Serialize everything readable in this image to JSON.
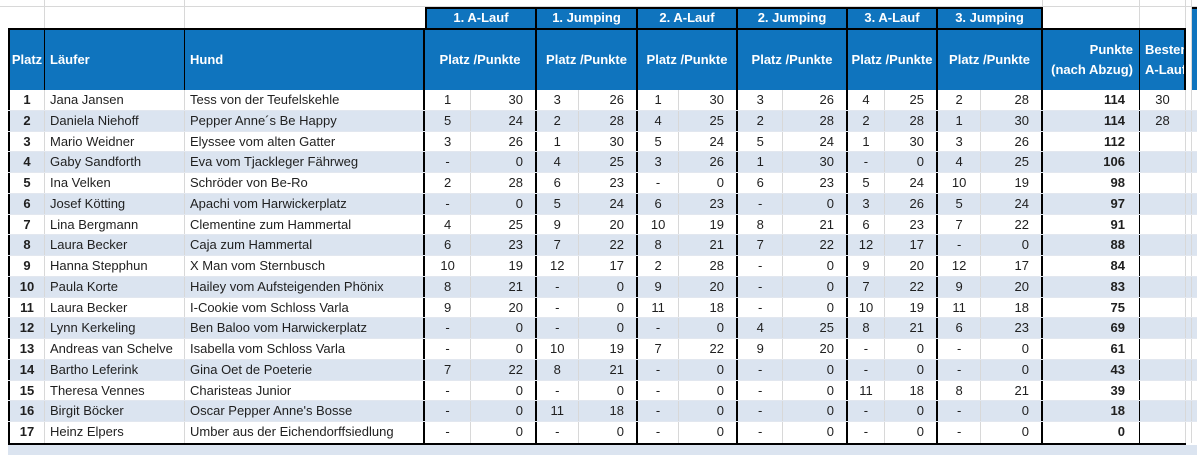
{
  "colors": {
    "header_blue": "#0f74be",
    "band_row": "#dbe4f0",
    "gridline": "#d8d8d8",
    "border_black": "#000000"
  },
  "table": {
    "corner": {
      "platz": "Platz",
      "laeufer": "Läufer",
      "hund": "Hund"
    },
    "run_groups": [
      "1. A-Lauf",
      "1. Jumping",
      "2. A-Lauf",
      "2. Jumping",
      "3. A-Lauf",
      "3. Jumping"
    ],
    "sub_header": "Platz /Punkte",
    "punkte_header": {
      "line1": "Punkte",
      "line2": "(nach Abzug)"
    },
    "bester_header": {
      "line1": "Bester",
      "line2": "A-Lauf"
    },
    "rows": [
      {
        "platz": "1",
        "laeufer": "Jana Jansen",
        "hund": "Tess von der Teufelskehle",
        "runs": [
          [
            "1",
            "30"
          ],
          [
            "3",
            "26"
          ],
          [
            "1",
            "30"
          ],
          [
            "3",
            "26"
          ],
          [
            "4",
            "25"
          ],
          [
            "2",
            "28"
          ]
        ],
        "punkte": "114",
        "bester": "30"
      },
      {
        "platz": "2",
        "laeufer": "Daniela Niehoff",
        "hund": "Pepper Anne´s Be Happy",
        "runs": [
          [
            "5",
            "24"
          ],
          [
            "2",
            "28"
          ],
          [
            "4",
            "25"
          ],
          [
            "2",
            "28"
          ],
          [
            "2",
            "28"
          ],
          [
            "1",
            "30"
          ]
        ],
        "punkte": "114",
        "bester": "28"
      },
      {
        "platz": "3",
        "laeufer": "Mario Weidner",
        "hund": "Elyssee vom alten Gatter",
        "runs": [
          [
            "3",
            "26"
          ],
          [
            "1",
            "30"
          ],
          [
            "5",
            "24"
          ],
          [
            "5",
            "24"
          ],
          [
            "1",
            "30"
          ],
          [
            "3",
            "26"
          ]
        ],
        "punkte": "112",
        "bester": ""
      },
      {
        "platz": "4",
        "laeufer": "Gaby Sandforth",
        "hund": "Eva vom Tjackleger Fährweg",
        "runs": [
          [
            "-",
            "0"
          ],
          [
            "4",
            "25"
          ],
          [
            "3",
            "26"
          ],
          [
            "1",
            "30"
          ],
          [
            "-",
            "0"
          ],
          [
            "4",
            "25"
          ]
        ],
        "punkte": "106",
        "bester": ""
      },
      {
        "platz": "5",
        "laeufer": "Ina Velken",
        "hund": "Schröder von Be-Ro",
        "runs": [
          [
            "2",
            "28"
          ],
          [
            "6",
            "23"
          ],
          [
            "-",
            "0"
          ],
          [
            "6",
            "23"
          ],
          [
            "5",
            "24"
          ],
          [
            "10",
            "19"
          ]
        ],
        "punkte": "98",
        "bester": ""
      },
      {
        "platz": "6",
        "laeufer": "Josef Kötting",
        "hund": "Apachi vom Harwickerplatz",
        "runs": [
          [
            "-",
            "0"
          ],
          [
            "5",
            "24"
          ],
          [
            "6",
            "23"
          ],
          [
            "-",
            "0"
          ],
          [
            "3",
            "26"
          ],
          [
            "5",
            "24"
          ]
        ],
        "punkte": "97",
        "bester": ""
      },
      {
        "platz": "7",
        "laeufer": "Lina Bergmann",
        "hund": "Clementine zum Hammertal",
        "runs": [
          [
            "4",
            "25"
          ],
          [
            "9",
            "20"
          ],
          [
            "10",
            "19"
          ],
          [
            "8",
            "21"
          ],
          [
            "6",
            "23"
          ],
          [
            "7",
            "22"
          ]
        ],
        "punkte": "91",
        "bester": ""
      },
      {
        "platz": "8",
        "laeufer": "Laura Becker",
        "hund": "Caja zum Hammertal",
        "runs": [
          [
            "6",
            "23"
          ],
          [
            "7",
            "22"
          ],
          [
            "8",
            "21"
          ],
          [
            "7",
            "22"
          ],
          [
            "12",
            "17"
          ],
          [
            "-",
            "0"
          ]
        ],
        "punkte": "88",
        "bester": ""
      },
      {
        "platz": "9",
        "laeufer": "Hanna Stepphun",
        "hund": "X Man vom Sternbusch",
        "runs": [
          [
            "10",
            "19"
          ],
          [
            "12",
            "17"
          ],
          [
            "2",
            "28"
          ],
          [
            "-",
            "0"
          ],
          [
            "9",
            "20"
          ],
          [
            "12",
            "17"
          ]
        ],
        "punkte": "84",
        "bester": ""
      },
      {
        "platz": "10",
        "laeufer": "Paula Korte",
        "hund": "Hailey vom Aufsteigenden Phönix",
        "runs": [
          [
            "8",
            "21"
          ],
          [
            "-",
            "0"
          ],
          [
            "9",
            "20"
          ],
          [
            "-",
            "0"
          ],
          [
            "7",
            "22"
          ],
          [
            "9",
            "20"
          ]
        ],
        "punkte": "83",
        "bester": ""
      },
      {
        "platz": "11",
        "laeufer": "Laura Becker",
        "hund": "I-Cookie vom Schloss Varla",
        "runs": [
          [
            "9",
            "20"
          ],
          [
            "-",
            "0"
          ],
          [
            "11",
            "18"
          ],
          [
            "-",
            "0"
          ],
          [
            "10",
            "19"
          ],
          [
            "11",
            "18"
          ]
        ],
        "punkte": "75",
        "bester": ""
      },
      {
        "platz": "12",
        "laeufer": "Lynn Kerkeling",
        "hund": "Ben Baloo vom Harwickerplatz",
        "runs": [
          [
            "-",
            "0"
          ],
          [
            "-",
            "0"
          ],
          [
            "-",
            "0"
          ],
          [
            "4",
            "25"
          ],
          [
            "8",
            "21"
          ],
          [
            "6",
            "23"
          ]
        ],
        "punkte": "69",
        "bester": ""
      },
      {
        "platz": "13",
        "laeufer": "Andreas van Schelve",
        "hund": "Isabella vom Schloss Varla",
        "runs": [
          [
            "-",
            "0"
          ],
          [
            "10",
            "19"
          ],
          [
            "7",
            "22"
          ],
          [
            "9",
            "20"
          ],
          [
            "-",
            "0"
          ],
          [
            "-",
            "0"
          ]
        ],
        "punkte": "61",
        "bester": ""
      },
      {
        "platz": "14",
        "laeufer": "Bartho Leferink",
        "hund": "Gina Oet de Poeterie",
        "runs": [
          [
            "7",
            "22"
          ],
          [
            "8",
            "21"
          ],
          [
            "-",
            "0"
          ],
          [
            "-",
            "0"
          ],
          [
            "-",
            "0"
          ],
          [
            "-",
            "0"
          ]
        ],
        "punkte": "43",
        "bester": ""
      },
      {
        "platz": "15",
        "laeufer": "Theresa Vennes",
        "hund": "Charisteas Junior",
        "runs": [
          [
            "-",
            "0"
          ],
          [
            "-",
            "0"
          ],
          [
            "-",
            "0"
          ],
          [
            "-",
            "0"
          ],
          [
            "11",
            "18"
          ],
          [
            "8",
            "21"
          ]
        ],
        "punkte": "39",
        "bester": ""
      },
      {
        "platz": "16",
        "laeufer": "Birgit Böcker",
        "hund": "Oscar Pepper Anne's Bosse",
        "runs": [
          [
            "-",
            "0"
          ],
          [
            "11",
            "18"
          ],
          [
            "-",
            "0"
          ],
          [
            "-",
            "0"
          ],
          [
            "-",
            "0"
          ],
          [
            "-",
            "0"
          ]
        ],
        "punkte": "18",
        "bester": ""
      },
      {
        "platz": "17",
        "laeufer": "Heinz Elpers",
        "hund": "Umber aus der Eichendorffsiedlung",
        "runs": [
          [
            "-",
            "0"
          ],
          [
            "-",
            "0"
          ],
          [
            "-",
            "0"
          ],
          [
            "-",
            "0"
          ],
          [
            "-",
            "0"
          ],
          [
            "-",
            "0"
          ]
        ],
        "punkte": "0",
        "bester": ""
      }
    ]
  }
}
